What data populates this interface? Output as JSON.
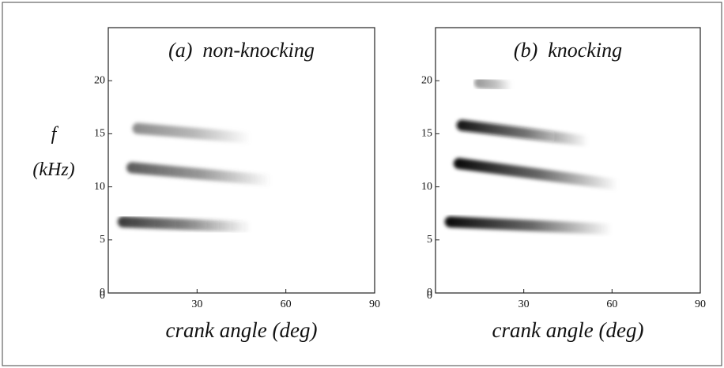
{
  "chart_data": [
    {
      "type": "spectrogram",
      "title": "(a)  non-knocking",
      "xlabel": "crank angle (deg)",
      "ylabel": [
        "f",
        "(kHz)"
      ],
      "xlim": [
        0,
        90
      ],
      "xticks": [
        30,
        60,
        90
      ],
      "ylim": [
        0,
        25
      ],
      "yticks": [
        0,
        5,
        10,
        15,
        20
      ],
      "series": [
        {
          "color": "#333333",
          "x": [
            5,
            48
          ],
          "values": [
            6.7,
            6.2
          ]
        },
        {
          "color": "#555555",
          "x": [
            8,
            55
          ],
          "values": [
            11.8,
            10.6
          ]
        },
        {
          "color": "#888888",
          "x": [
            10,
            48
          ],
          "values": [
            15.5,
            14.6
          ]
        }
      ]
    },
    {
      "type": "spectrogram",
      "title": "(b)  knocking",
      "xlabel": "crank angle (deg)",
      "xlim": [
        0,
        90
      ],
      "xticks": [
        30,
        60,
        90
      ],
      "ylim": [
        0,
        25
      ],
      "yticks": [
        0,
        5,
        10,
        15,
        20
      ],
      "series": [
        {
          "color": "#000000",
          "x": [
            5,
            60
          ],
          "values": [
            6.7,
            6.0
          ]
        },
        {
          "color": "#000000",
          "x": [
            8,
            62
          ],
          "values": [
            12.2,
            10.2
          ]
        },
        {
          "color": "#111111",
          "x": [
            9,
            52
          ],
          "values": [
            15.8,
            14.3
          ]
        },
        {
          "color": "#999999",
          "x": [
            15,
            26
          ],
          "values": [
            19.8,
            19.5
          ]
        }
      ]
    }
  ]
}
